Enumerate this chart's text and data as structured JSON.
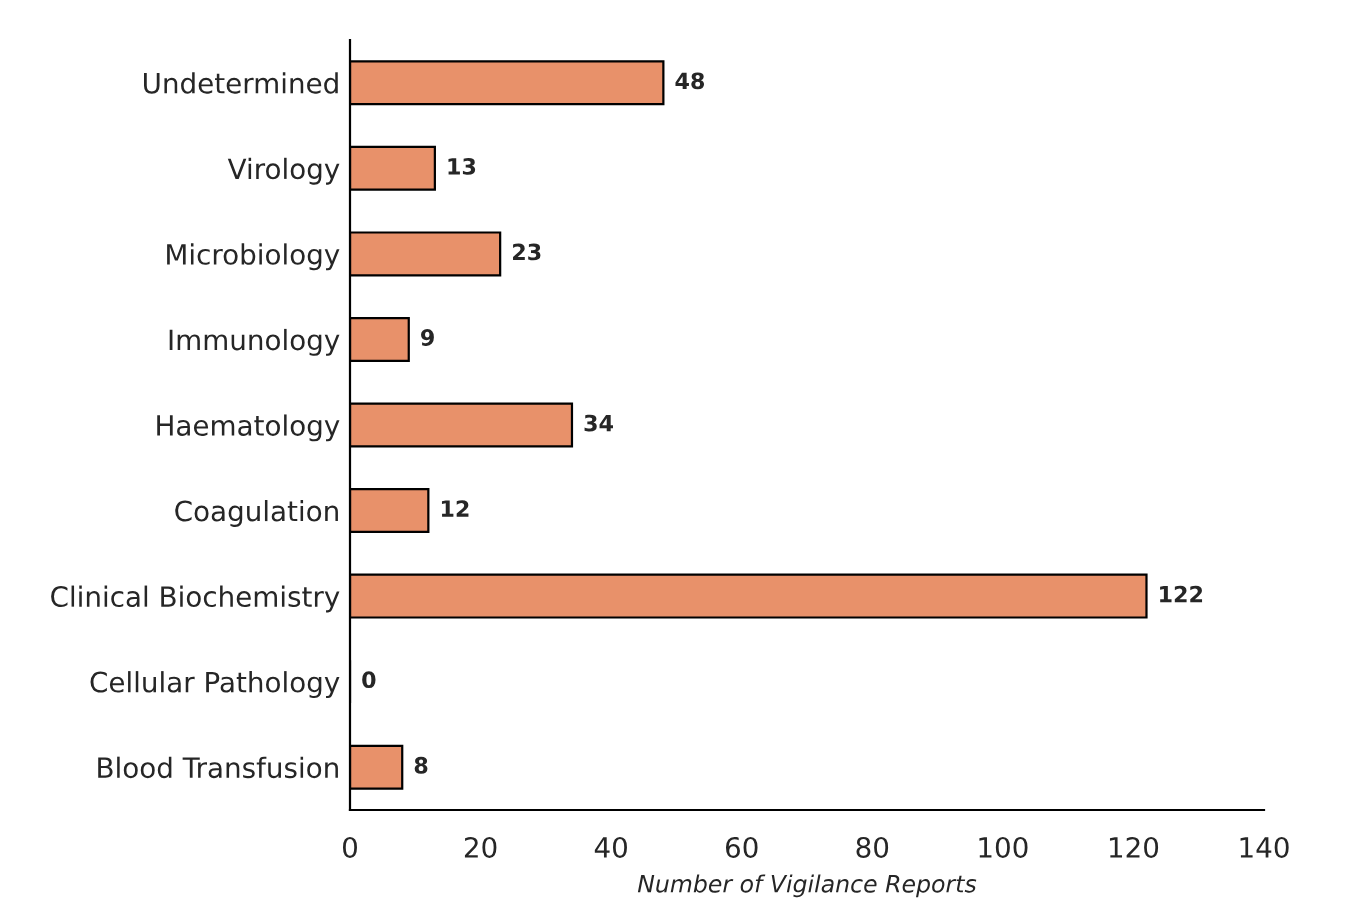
{
  "chart_data": {
    "type": "bar",
    "orientation": "horizontal",
    "categories": [
      "Undetermined",
      "Virology",
      "Microbiology",
      "Immunology",
      "Haematology",
      "Coagulation",
      "Clinical Biochemistry",
      "Cellular Pathology",
      "Blood Transfusion"
    ],
    "values": [
      48,
      13,
      23,
      9,
      34,
      12,
      122,
      0,
      8
    ],
    "color": "#e8916a",
    "xlim": [
      0,
      140
    ],
    "xticks": [
      0,
      20,
      40,
      60,
      80,
      100,
      120,
      140
    ],
    "xlabel": "Number of Vigilance Reports",
    "data_labels": true,
    "grid": false,
    "legend": false
  }
}
